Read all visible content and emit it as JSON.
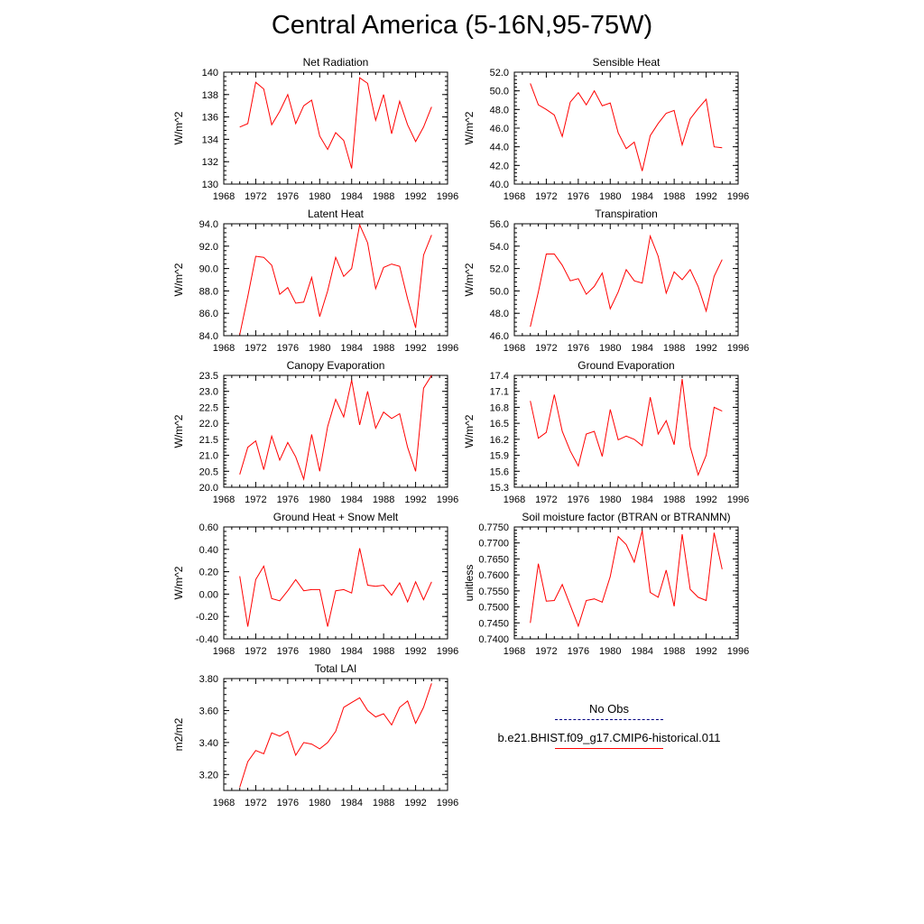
{
  "figure": {
    "title": "Central America (5-16N,95-75W)"
  },
  "legend": {
    "obs_label": "No Obs",
    "obs_color": "#000080",
    "model_label": "b.e21.BHIST.f09_g17.CMIP6-historical.011",
    "model_color": "#ff0000"
  },
  "chart_data": [
    {
      "type": "line",
      "title": "Net Radiation",
      "ylabel": "W/m^2",
      "xlim": [
        1968,
        1996
      ],
      "xticks": [
        "1968",
        "1972",
        "1976",
        "1980",
        "1984",
        "1988",
        "1992",
        "1996"
      ],
      "ylim": [
        130,
        140
      ],
      "yticks": [
        "130",
        "132",
        "134",
        "136",
        "138",
        "140"
      ],
      "grid": false,
      "series": [
        {
          "color": "#ff0000",
          "x": [
            1970,
            1971,
            1972,
            1973,
            1974,
            1975,
            1976,
            1977,
            1978,
            1979,
            1980,
            1981,
            1982,
            1983,
            1984,
            1985,
            1986,
            1987,
            1988,
            1989,
            1990,
            1991,
            1992,
            1993,
            1994
          ],
          "y": [
            135.1,
            135.4,
            139.1,
            138.5,
            135.3,
            136.5,
            138.0,
            135.4,
            137.0,
            137.5,
            134.3,
            133.1,
            134.6,
            133.9,
            131.4,
            139.5,
            139.0,
            135.7,
            138.0,
            134.5,
            137.4,
            135.3,
            133.8,
            135.1,
            136.9
          ]
        }
      ]
    },
    {
      "type": "line",
      "title": "Sensible Heat",
      "ylabel": "W/m^2",
      "xlim": [
        1968,
        1996
      ],
      "xticks": [
        "1968",
        "1972",
        "1976",
        "1980",
        "1984",
        "1988",
        "1992",
        "1996"
      ],
      "ylim": [
        40,
        52
      ],
      "yticks": [
        "40.0",
        "42.0",
        "44.0",
        "46.0",
        "48.0",
        "50.0",
        "52.0"
      ],
      "grid": false,
      "series": [
        {
          "color": "#ff0000",
          "x": [
            1970,
            1971,
            1972,
            1973,
            1974,
            1975,
            1976,
            1977,
            1978,
            1979,
            1980,
            1981,
            1982,
            1983,
            1984,
            1985,
            1986,
            1987,
            1988,
            1989,
            1990,
            1991,
            1992,
            1993,
            1994
          ],
          "y": [
            50.8,
            48.5,
            48.0,
            47.4,
            45.1,
            48.8,
            49.8,
            48.5,
            50.0,
            48.4,
            48.7,
            45.5,
            43.8,
            44.5,
            41.4,
            45.2,
            46.5,
            47.6,
            47.9,
            44.2,
            47.0,
            48.1,
            49.1,
            44.0,
            43.9
          ]
        }
      ]
    },
    {
      "type": "line",
      "title": "Latent Heat",
      "ylabel": "W/m^2",
      "xlim": [
        1968,
        1996
      ],
      "xticks": [
        "1968",
        "1972",
        "1976",
        "1980",
        "1984",
        "1988",
        "1992",
        "1996"
      ],
      "ylim": [
        84,
        94
      ],
      "yticks": [
        "84.0",
        "86.0",
        "88.0",
        "90.0",
        "92.0",
        "94.0"
      ],
      "grid": false,
      "series": [
        {
          "color": "#ff0000",
          "x": [
            1970,
            1971,
            1972,
            1973,
            1974,
            1975,
            1976,
            1977,
            1978,
            1979,
            1980,
            1981,
            1982,
            1983,
            1984,
            1985,
            1986,
            1987,
            1988,
            1989,
            1990,
            1991,
            1992,
            1993,
            1994
          ],
          "y": [
            84.1,
            87.5,
            91.1,
            91.0,
            90.3,
            87.7,
            88.3,
            86.9,
            87.0,
            89.2,
            85.7,
            88.0,
            91.0,
            89.3,
            90.0,
            93.9,
            92.3,
            88.2,
            90.1,
            90.4,
            90.2,
            87.3,
            84.7,
            91.2,
            93.0
          ]
        }
      ]
    },
    {
      "type": "line",
      "title": "Transpiration",
      "ylabel": "W/m^2",
      "xlim": [
        1968,
        1996
      ],
      "xticks": [
        "1968",
        "1972",
        "1976",
        "1980",
        "1984",
        "1988",
        "1992",
        "1996"
      ],
      "ylim": [
        46,
        56
      ],
      "yticks": [
        "46.0",
        "48.0",
        "50.0",
        "52.0",
        "54.0",
        "56.0"
      ],
      "grid": false,
      "series": [
        {
          "color": "#ff0000",
          "x": [
            1970,
            1971,
            1972,
            1973,
            1974,
            1975,
            1976,
            1977,
            1978,
            1979,
            1980,
            1981,
            1982,
            1983,
            1984,
            1985,
            1986,
            1987,
            1988,
            1989,
            1990,
            1991,
            1992,
            1993,
            1994
          ],
          "y": [
            46.8,
            49.9,
            53.3,
            53.3,
            52.3,
            50.9,
            51.1,
            49.7,
            50.4,
            51.6,
            48.4,
            49.9,
            51.9,
            50.9,
            50.7,
            54.9,
            53.1,
            49.8,
            51.7,
            51.0,
            51.9,
            50.4,
            48.2,
            51.3,
            52.8
          ]
        }
      ]
    },
    {
      "type": "line",
      "title": "Canopy Evaporation",
      "ylabel": "W/m^2",
      "xlim": [
        1968,
        1996
      ],
      "xticks": [
        "1968",
        "1972",
        "1976",
        "1980",
        "1984",
        "1988",
        "1992",
        "1996"
      ],
      "ylim": [
        20,
        23.5
      ],
      "yticks": [
        "20.0",
        "20.5",
        "21.0",
        "21.5",
        "22.0",
        "22.5",
        "23.0",
        "23.5"
      ],
      "grid": false,
      "series": [
        {
          "color": "#ff0000",
          "x": [
            1970,
            1971,
            1972,
            1973,
            1974,
            1975,
            1976,
            1977,
            1978,
            1979,
            1980,
            1981,
            1982,
            1983,
            1984,
            1985,
            1986,
            1987,
            1988,
            1989,
            1990,
            1991,
            1992,
            1993,
            1994
          ],
          "y": [
            20.4,
            21.25,
            21.45,
            20.55,
            21.6,
            20.85,
            21.4,
            20.95,
            20.25,
            21.65,
            20.5,
            21.9,
            22.75,
            22.2,
            23.35,
            21.95,
            23.0,
            21.85,
            22.35,
            22.15,
            22.3,
            21.25,
            20.5,
            23.1,
            23.5
          ]
        }
      ]
    },
    {
      "type": "line",
      "title": "Ground Evaporation",
      "ylabel": "W/m^2",
      "xlim": [
        1968,
        1996
      ],
      "xticks": [
        "1968",
        "1972",
        "1976",
        "1980",
        "1984",
        "1988",
        "1992",
        "1996"
      ],
      "ylim": [
        15.3,
        17.4
      ],
      "yticks": [
        "15.3",
        "15.6",
        "15.9",
        "16.2",
        "16.5",
        "16.8",
        "17.1",
        "17.4"
      ],
      "grid": false,
      "series": [
        {
          "color": "#ff0000",
          "x": [
            1970,
            1971,
            1972,
            1973,
            1974,
            1975,
            1976,
            1977,
            1978,
            1979,
            1980,
            1981,
            1982,
            1983,
            1984,
            1985,
            1986,
            1987,
            1988,
            1989,
            1990,
            1991,
            1992,
            1993,
            1994
          ],
          "y": [
            16.92,
            16.22,
            16.33,
            17.04,
            16.35,
            15.98,
            15.7,
            16.3,
            16.35,
            15.88,
            16.76,
            16.19,
            16.26,
            16.2,
            16.08,
            16.99,
            16.3,
            16.55,
            16.1,
            17.33,
            16.06,
            15.53,
            15.9,
            16.8,
            16.73
          ]
        }
      ]
    },
    {
      "type": "line",
      "title": "Ground Heat + Snow Melt",
      "ylabel": "W/m^2",
      "xlim": [
        1968,
        1996
      ],
      "xticks": [
        "1968",
        "1972",
        "1976",
        "1980",
        "1984",
        "1988",
        "1992",
        "1996"
      ],
      "ylim": [
        -0.4,
        0.6
      ],
      "yticks": [
        "-0.40",
        "-0.20",
        "0.00",
        "0.20",
        "0.40",
        "0.60"
      ],
      "grid": false,
      "series": [
        {
          "color": "#ff0000",
          "x": [
            1970,
            1971,
            1972,
            1973,
            1974,
            1975,
            1976,
            1977,
            1978,
            1979,
            1980,
            1981,
            1982,
            1983,
            1984,
            1985,
            1986,
            1987,
            1988,
            1989,
            1990,
            1991,
            1992,
            1993,
            1994
          ],
          "y": [
            0.16,
            -0.29,
            0.13,
            0.25,
            -0.04,
            -0.06,
            0.03,
            0.13,
            0.03,
            0.04,
            0.04,
            -0.29,
            0.03,
            0.04,
            0.01,
            0.41,
            0.08,
            0.07,
            0.08,
            -0.01,
            0.1,
            -0.07,
            0.11,
            -0.05,
            0.11
          ]
        }
      ]
    },
    {
      "type": "line",
      "title": "Soil moisture factor (BTRAN or BTRANMN)",
      "ylabel": "unitless",
      "xlim": [
        1968,
        1996
      ],
      "xticks": [
        "1968",
        "1972",
        "1976",
        "1980",
        "1984",
        "1988",
        "1992",
        "1996"
      ],
      "ylim": [
        0.74,
        0.775
      ],
      "yticks": [
        "0.7400",
        "0.7450",
        "0.7500",
        "0.7550",
        "0.7600",
        "0.7650",
        "0.7700",
        "0.7750"
      ],
      "grid": false,
      "series": [
        {
          "color": "#ff0000",
          "x": [
            1970,
            1971,
            1972,
            1973,
            1974,
            1975,
            1976,
            1977,
            1978,
            1979,
            1980,
            1981,
            1982,
            1983,
            1984,
            1985,
            1986,
            1987,
            1988,
            1989,
            1990,
            1991,
            1992,
            1993,
            1994
          ],
          "y": [
            0.745,
            0.7635,
            0.7518,
            0.752,
            0.757,
            0.7505,
            0.744,
            0.752,
            0.7525,
            0.7515,
            0.7595,
            0.772,
            0.7695,
            0.764,
            0.7738,
            0.7545,
            0.753,
            0.7615,
            0.7502,
            0.7727,
            0.7555,
            0.753,
            0.752,
            0.7732,
            0.7618
          ]
        }
      ]
    },
    {
      "type": "line",
      "title": "Total LAI",
      "ylabel": "m2/m2",
      "xlim": [
        1968,
        1996
      ],
      "xticks": [
        "1968",
        "1972",
        "1976",
        "1980",
        "1984",
        "1988",
        "1992",
        "1996"
      ],
      "ylim": [
        3.1,
        3.8
      ],
      "yticks": [
        "3.20",
        "3.40",
        "3.60",
        "3.80"
      ],
      "grid": false,
      "series": [
        {
          "color": "#ff0000",
          "x": [
            1970,
            1971,
            1972,
            1973,
            1974,
            1975,
            1976,
            1977,
            1978,
            1979,
            1980,
            1981,
            1982,
            1983,
            1984,
            1985,
            1986,
            1987,
            1988,
            1989,
            1990,
            1991,
            1992,
            1993,
            1994
          ],
          "y": [
            3.12,
            3.28,
            3.35,
            3.33,
            3.46,
            3.44,
            3.47,
            3.32,
            3.4,
            3.39,
            3.36,
            3.4,
            3.47,
            3.62,
            3.65,
            3.68,
            3.6,
            3.56,
            3.58,
            3.51,
            3.62,
            3.66,
            3.52,
            3.62,
            3.77
          ]
        }
      ]
    }
  ]
}
